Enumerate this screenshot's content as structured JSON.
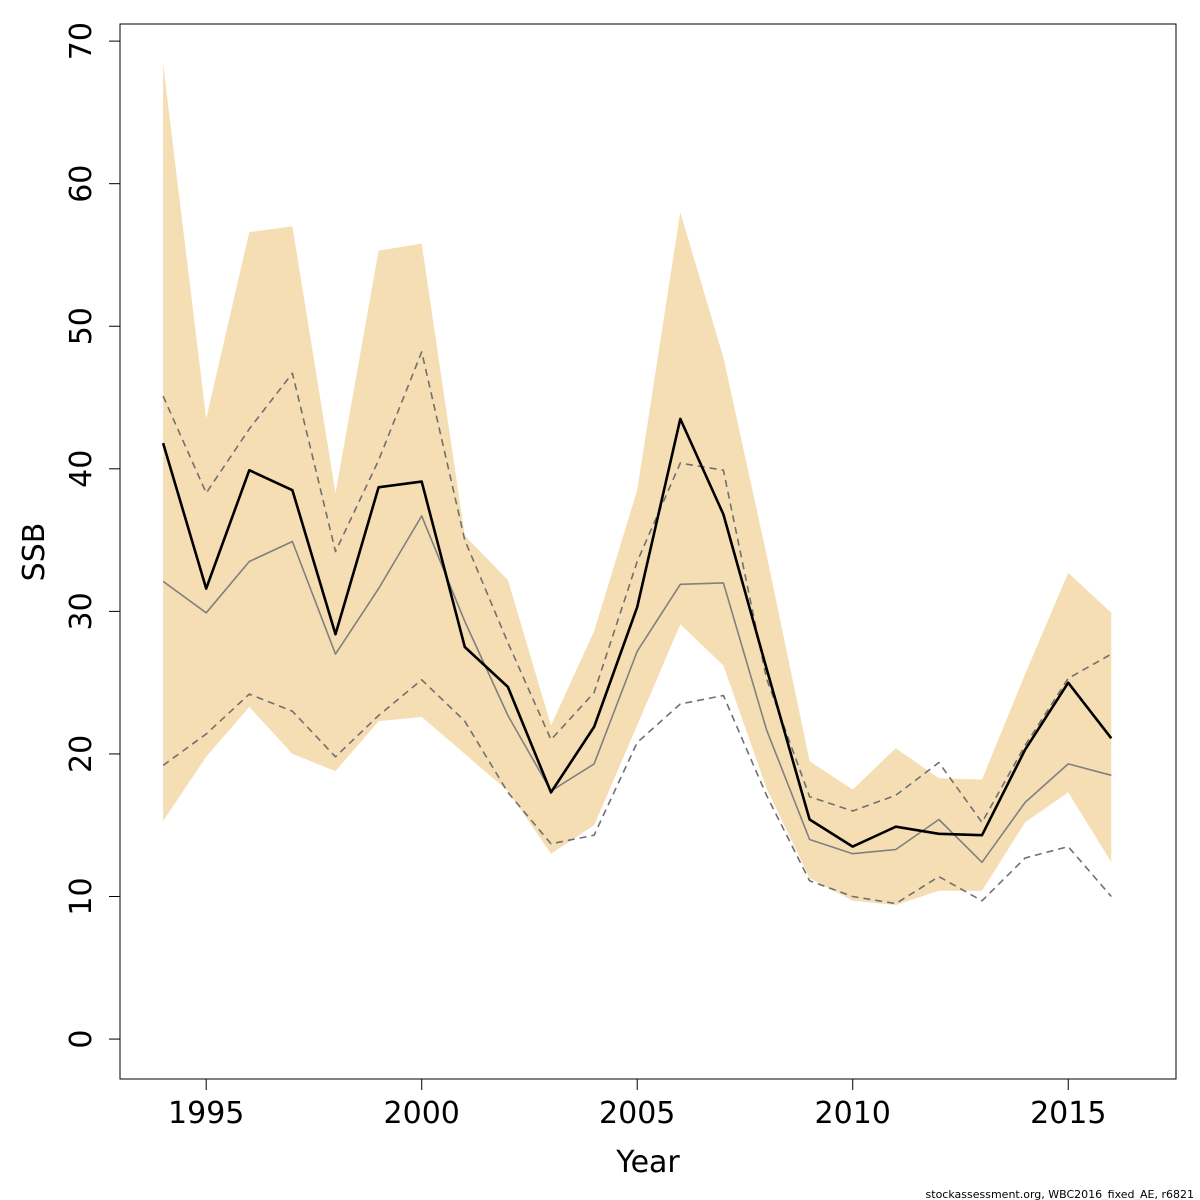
{
  "chart_data": {
    "type": "line",
    "title": "",
    "xlabel": "Year",
    "ylabel": "SSB",
    "xlim": [
      1993,
      2017.5
    ],
    "ylim": [
      -2.8,
      71.2
    ],
    "x_ticks": [
      1995,
      2000,
      2005,
      2010,
      2015
    ],
    "y_ticks": [
      0,
      10,
      20,
      30,
      40,
      50,
      60,
      70
    ],
    "grid": false,
    "legend": "none",
    "x": [
      1994,
      1995,
      1996,
      1997,
      1998,
      1999,
      2000,
      2001,
      2002,
      2003,
      2004,
      2005,
      2006,
      2007,
      2008,
      2009,
      2010,
      2011,
      2012,
      2013,
      2014,
      2015,
      2016
    ],
    "band": {
      "color": "#f5deb3",
      "upper": [
        68.4,
        43.5,
        56.6,
        57.0,
        38.3,
        55.3,
        55.8,
        35.3,
        32.2,
        22.0,
        28.6,
        38.5,
        58.0,
        47.8,
        34.0,
        19.5,
        17.5,
        20.4,
        18.3,
        18.2,
        25.6,
        32.7,
        29.9
      ],
      "lower": [
        15.3,
        19.8,
        23.3,
        20.0,
        18.8,
        22.3,
        22.6,
        20.0,
        17.4,
        13.0,
        15.0,
        22.0,
        29.1,
        26.2,
        17.6,
        11.3,
        9.7,
        9.4,
        10.4,
        10.4,
        15.2,
        17.3,
        12.4
      ]
    },
    "series": [
      {
        "style": "solid-thick",
        "color": "#000000",
        "values": [
          41.8,
          31.6,
          39.9,
          38.5,
          28.4,
          38.7,
          39.1,
          27.5,
          24.7,
          17.3,
          21.9,
          30.3,
          43.5,
          36.8,
          26.0,
          15.4,
          13.5,
          14.9,
          14.4,
          14.3,
          20.3,
          25.0,
          21.1
        ]
      },
      {
        "style": "solid-thin",
        "color": "#808080",
        "values": [
          32.1,
          29.9,
          33.5,
          34.9,
          27.0,
          31.6,
          36.7,
          29.3,
          22.7,
          17.4,
          19.3,
          27.2,
          31.9,
          32.0,
          21.7,
          14.0,
          13.0,
          13.3,
          15.4,
          12.4,
          16.6,
          19.3,
          18.5
        ]
      },
      {
        "style": "dashed",
        "color": "#707070",
        "values": [
          45.1,
          38.3,
          42.8,
          46.7,
          34.2,
          40.6,
          48.2,
          35.0,
          27.8,
          21.0,
          24.3,
          33.5,
          40.4,
          39.9,
          25.3,
          17.0,
          16.0,
          17.1,
          19.4,
          15.2,
          20.6,
          25.3,
          27.0
        ]
      },
      {
        "style": "dashed",
        "color": "#707070",
        "values": [
          19.2,
          21.4,
          24.2,
          23.0,
          19.8,
          22.7,
          25.2,
          22.3,
          17.3,
          13.7,
          14.3,
          20.8,
          23.5,
          24.1,
          17.1,
          11.1,
          10.0,
          9.5,
          11.4,
          9.7,
          12.7,
          13.5,
          10.0
        ]
      }
    ]
  },
  "footer_text": "stockassessment.org, WBC2016_fixed_AE, r6821"
}
